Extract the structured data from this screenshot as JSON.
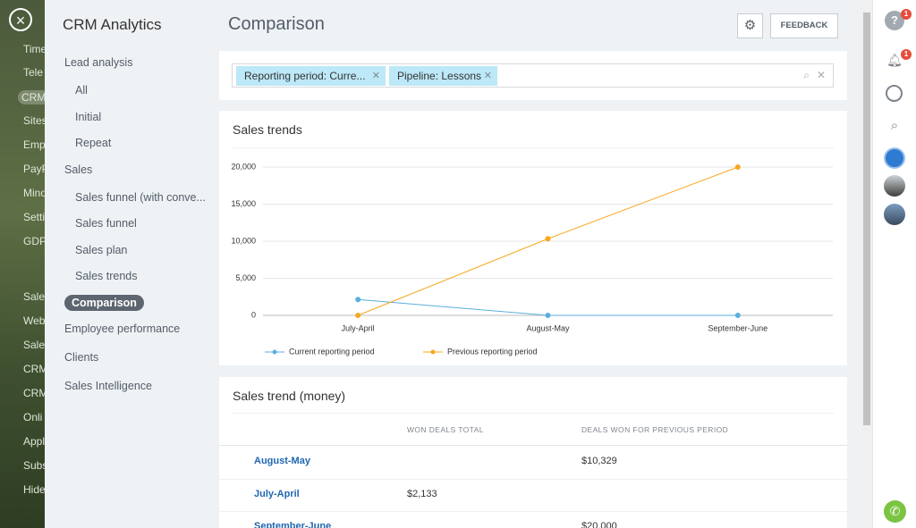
{
  "background_menu": [
    "Time",
    "Tele",
    "CRM",
    "Sites",
    "Emp",
    "PayP",
    "Mino",
    "Setti",
    "GDP",
    "Sale",
    "Web",
    "Sale",
    "CRM",
    "CRM",
    "Onli",
    "Appl",
    "Subs",
    "Hide"
  ],
  "sidebar": {
    "title": "CRM Analytics",
    "groups": [
      {
        "label": "Lead analysis",
        "items": [
          {
            "label": "All"
          },
          {
            "label": "Initial"
          },
          {
            "label": "Repeat"
          }
        ]
      },
      {
        "label": "Sales",
        "items": [
          {
            "label": "Sales funnel (with conve..."
          },
          {
            "label": "Sales funnel"
          },
          {
            "label": "Sales plan"
          },
          {
            "label": "Sales trends"
          },
          {
            "label": "Comparison",
            "selected": true
          }
        ]
      },
      {
        "label": "Employee performance",
        "items": []
      },
      {
        "label": "Clients",
        "items": []
      },
      {
        "label": "Sales Intelligence",
        "items": []
      }
    ]
  },
  "header": {
    "title": "Comparison",
    "button": "FEEDBACK"
  },
  "filters": {
    "chips": [
      "Reporting period: Curre...",
      "Pipeline: Lessons"
    ]
  },
  "chart_data": {
    "type": "line",
    "title": "Sales trends",
    "categories": [
      "July-April",
      "August-May",
      "September-June"
    ],
    "series": [
      {
        "name": "Current reporting period",
        "color": "#5aafde",
        "values": [
          2133,
          0,
          0
        ]
      },
      {
        "name": "Previous reporting period",
        "color": "#f5a81c",
        "values": [
          0,
          10329,
          20000
        ]
      }
    ],
    "ylim": [
      0,
      20000
    ],
    "yticks": [
      0,
      {
        "value": 5000,
        "label": "5,000"
      },
      {
        "value": 10000,
        "label": "10,000"
      },
      {
        "value": 15000,
        "label": "15,000"
      },
      {
        "value": 20000,
        "label": "20,000"
      }
    ],
    "grid": true,
    "legend": "bottom"
  },
  "table": {
    "title": "Sales trend (money)",
    "columns": [
      null,
      "WON DEALS TOTAL",
      "DEALS WON FOR PREVIOUS PERIOD"
    ],
    "rows": [
      [
        "August-May",
        null,
        "$10,329"
      ],
      [
        "July-April",
        "$2,133",
        null
      ],
      [
        "September-June",
        null,
        "$20,000"
      ]
    ]
  },
  "notifications": {
    "help_badge": 1,
    "bell_badge": 1
  }
}
